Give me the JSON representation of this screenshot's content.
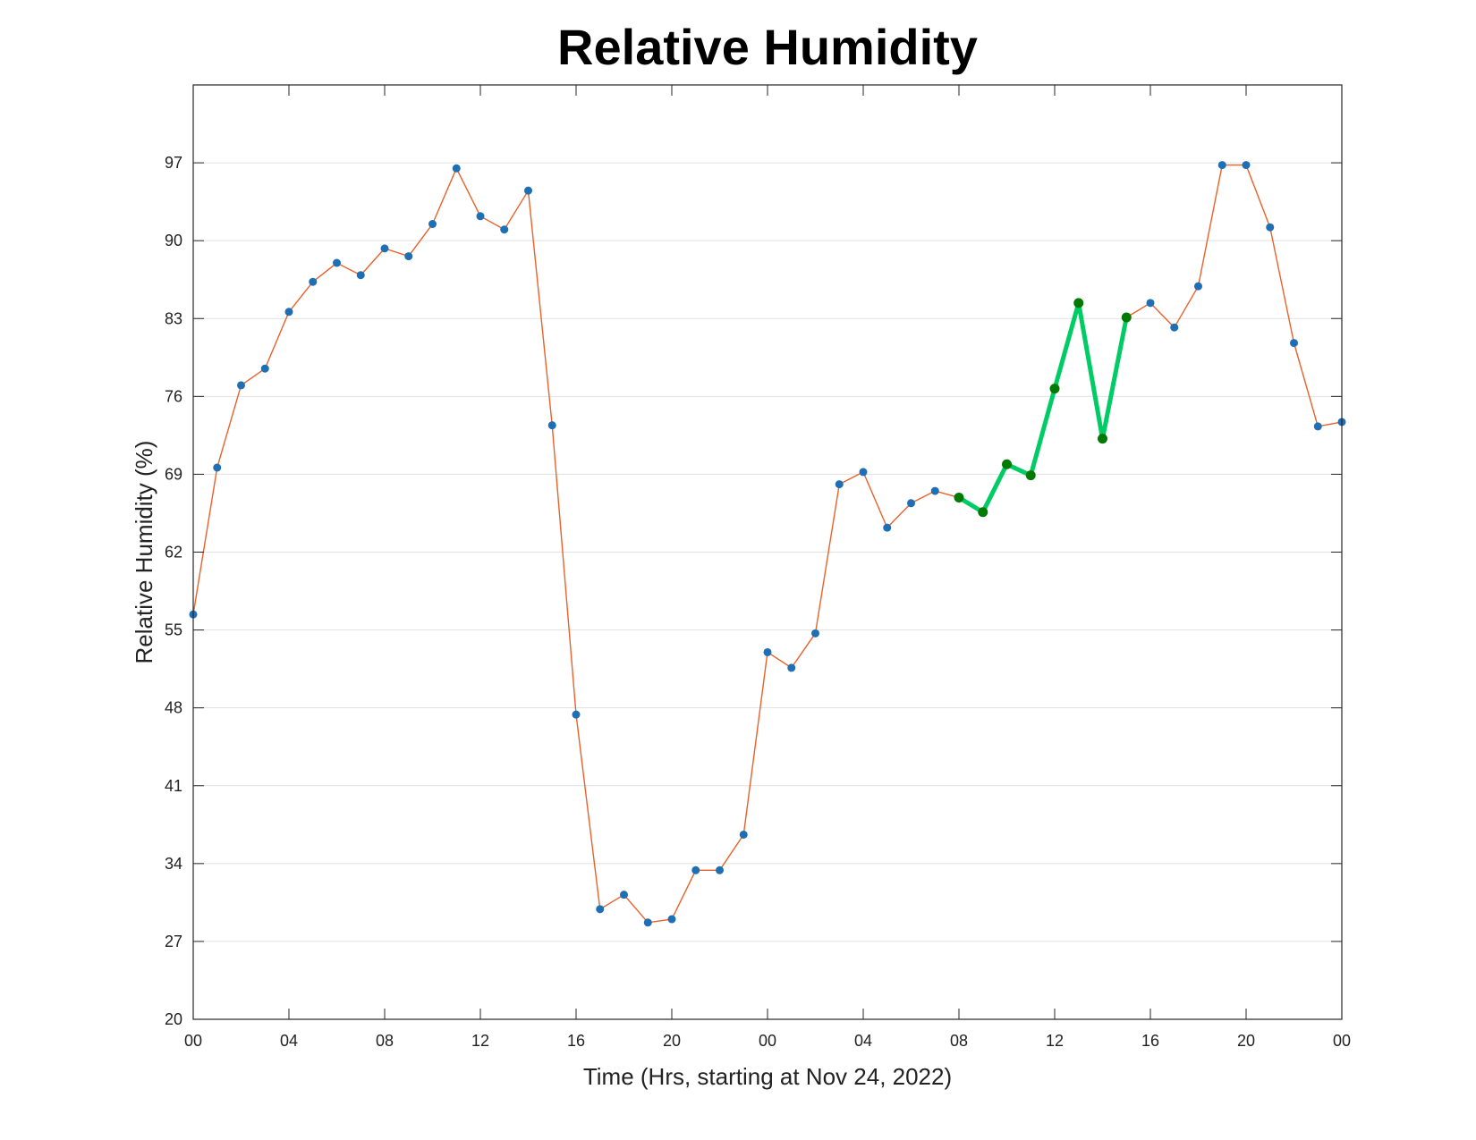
{
  "chart_data": {
    "type": "line",
    "title": "Relative Humidity",
    "xlabel": "Time (Hrs, starting at Nov 24, 2022)",
    "ylabel": "Relative Humidity (%)",
    "ylim": [
      20,
      104
    ],
    "yticks": [
      20,
      27,
      34,
      41,
      48,
      55,
      62,
      69,
      76,
      83,
      90,
      97
    ],
    "x_unit": "hours",
    "xlim": [
      0,
      48
    ],
    "xticks": [
      0,
      4,
      8,
      12,
      16,
      20,
      24,
      28,
      32,
      36,
      40,
      44,
      48
    ],
    "xtick_labels": [
      "00",
      "04",
      "08",
      "12",
      "16",
      "20",
      "00",
      "04",
      "08",
      "12",
      "16",
      "20",
      "00"
    ],
    "grid": "horizontal",
    "series": [
      {
        "line_color": "#e8622a",
        "marker_color": "#1f6fb4",
        "x": [
          0,
          1,
          2,
          3,
          4,
          5,
          6,
          7,
          8,
          9,
          10,
          11,
          12,
          13,
          14,
          15,
          16,
          17,
          18,
          19,
          20,
          21,
          22,
          23,
          24,
          25,
          26,
          27,
          28,
          29,
          30,
          31,
          32,
          33,
          34,
          35,
          36,
          37,
          38,
          39,
          40,
          41,
          42,
          43,
          44,
          45,
          46,
          47,
          48
        ],
        "values": [
          56.4,
          69.6,
          77.0,
          78.5,
          83.6,
          86.3,
          88.0,
          86.9,
          89.3,
          88.6,
          91.5,
          96.5,
          92.2,
          91.0,
          94.5,
          73.4,
          47.4,
          29.9,
          31.2,
          28.7,
          29.0,
          33.4,
          33.4,
          36.6,
          53.0,
          51.6,
          54.7,
          68.1,
          69.2,
          64.2,
          66.4,
          67.5,
          66.9,
          65.6,
          69.9,
          68.9,
          76.7,
          84.4,
          72.2,
          83.1,
          84.4,
          82.2,
          85.9,
          96.8,
          96.8,
          91.2,
          80.8,
          73.3,
          73.7
        ]
      },
      {
        "line_color": "#00cc66",
        "marker_color": "#007a00",
        "x": [
          32,
          33,
          34,
          35,
          36,
          37,
          38,
          39
        ],
        "values": [
          66.9,
          65.6,
          69.9,
          68.9,
          76.7,
          84.4,
          72.2,
          83.1
        ]
      }
    ]
  }
}
